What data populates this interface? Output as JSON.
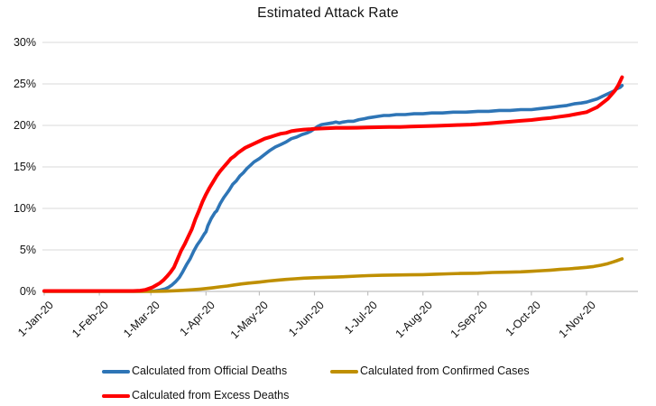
{
  "title": "Estimated Attack Rate",
  "colors": {
    "gridline": "#D9D9D9",
    "axis_line": "#C0C0C0",
    "text": "#111111",
    "background": "#FFFFFF",
    "official_deaths": "#2E75B6",
    "confirmed_cases": "#BF8F00",
    "excess_deaths": "#FF0000"
  },
  "legend": {
    "items": [
      {
        "id": "official-deaths",
        "label": "Calculated from Official Deaths",
        "color": "#2E75B6"
      },
      {
        "id": "confirmed-cases",
        "label": "Calculated from Confirmed Cases",
        "color": "#BF8F00"
      },
      {
        "id": "excess-deaths",
        "label": "Calculated from Excess Deaths",
        "color": "#FF0000"
      }
    ]
  },
  "chart_data": {
    "type": "line",
    "title": "Estimated Attack Rate",
    "xlabel": "",
    "ylabel": "",
    "grid": "horizontal",
    "legend_position": "bottom",
    "x_axis": {
      "unit": "days since 1-Jan-20",
      "tick_labels": [
        "1-Jan-20",
        "1-Feb-20",
        "1-Mar-20",
        "1-Apr-20",
        "1-May-20",
        "1-Jun-20",
        "1-Jul-20",
        "1-Aug-20",
        "1-Sep-20",
        "1-Oct-20",
        "1-Nov-20"
      ],
      "tick_days": [
        0,
        31,
        60,
        91,
        121,
        152,
        182,
        213,
        244,
        274,
        305
      ],
      "range_days": [
        0,
        334
      ]
    },
    "y_axis": {
      "tick_labels": [
        "0%",
        "5%",
        "10%",
        "15%",
        "20%",
        "25%",
        "30%"
      ],
      "tick_values": [
        0,
        5,
        10,
        15,
        20,
        25,
        30
      ],
      "range": [
        0,
        30
      ]
    },
    "series": [
      {
        "id": "official-deaths",
        "name": "Calculated from Official Deaths",
        "color": "#2E75B6",
        "width": 3.6,
        "points_day_pct": [
          [
            0,
            0.02
          ],
          [
            20,
            0.02
          ],
          [
            40,
            0.02
          ],
          [
            55,
            0.02
          ],
          [
            62,
            0.05
          ],
          [
            65,
            0.15
          ],
          [
            68,
            0.3
          ],
          [
            70,
            0.5
          ],
          [
            72,
            0.8
          ],
          [
            74,
            1.2
          ],
          [
            76,
            1.7
          ],
          [
            78,
            2.4
          ],
          [
            80,
            3.2
          ],
          [
            82,
            3.9
          ],
          [
            84,
            4.8
          ],
          [
            86,
            5.6
          ],
          [
            88,
            6.2
          ],
          [
            90,
            6.9
          ],
          [
            91,
            7.2
          ],
          [
            92,
            7.9
          ],
          [
            94,
            8.8
          ],
          [
            96,
            9.5
          ],
          [
            97,
            9.7
          ],
          [
            99,
            10.6
          ],
          [
            101,
            11.3
          ],
          [
            103,
            11.9
          ],
          [
            104,
            12.2
          ],
          [
            106,
            12.9
          ],
          [
            108,
            13.3
          ],
          [
            110,
            13.9
          ],
          [
            112,
            14.3
          ],
          [
            114,
            14.8
          ],
          [
            116,
            15.2
          ],
          [
            118,
            15.6
          ],
          [
            121,
            16.0
          ],
          [
            124,
            16.5
          ],
          [
            127,
            17.0
          ],
          [
            130,
            17.4
          ],
          [
            133,
            17.7
          ],
          [
            136,
            18.0
          ],
          [
            139,
            18.4
          ],
          [
            142,
            18.6
          ],
          [
            145,
            18.9
          ],
          [
            148,
            19.1
          ],
          [
            150,
            19.3
          ],
          [
            152,
            19.6
          ],
          [
            154,
            19.9
          ],
          [
            156,
            20.1
          ],
          [
            159,
            20.2
          ],
          [
            162,
            20.3
          ],
          [
            164,
            20.4
          ],
          [
            166,
            20.3
          ],
          [
            168,
            20.4
          ],
          [
            171,
            20.5
          ],
          [
            174,
            20.5
          ],
          [
            177,
            20.7
          ],
          [
            180,
            20.8
          ],
          [
            182,
            20.9
          ],
          [
            185,
            21.0
          ],
          [
            188,
            21.1
          ],
          [
            191,
            21.2
          ],
          [
            194,
            21.2
          ],
          [
            198,
            21.3
          ],
          [
            203,
            21.3
          ],
          [
            208,
            21.4
          ],
          [
            213,
            21.4
          ],
          [
            218,
            21.5
          ],
          [
            224,
            21.5
          ],
          [
            230,
            21.6
          ],
          [
            237,
            21.6
          ],
          [
            244,
            21.7
          ],
          [
            250,
            21.7
          ],
          [
            256,
            21.8
          ],
          [
            262,
            21.8
          ],
          [
            268,
            21.9
          ],
          [
            274,
            21.9
          ],
          [
            278,
            22.0
          ],
          [
            282,
            22.1
          ],
          [
            286,
            22.2
          ],
          [
            290,
            22.3
          ],
          [
            294,
            22.4
          ],
          [
            298,
            22.6
          ],
          [
            302,
            22.7
          ],
          [
            305,
            22.8
          ],
          [
            308,
            23.0
          ],
          [
            311,
            23.2
          ],
          [
            314,
            23.5
          ],
          [
            317,
            23.8
          ],
          [
            320,
            24.1
          ],
          [
            322,
            24.4
          ],
          [
            324,
            24.6
          ],
          [
            325,
            24.8
          ]
        ]
      },
      {
        "id": "confirmed-cases",
        "name": "Calculated from Confirmed Cases",
        "color": "#BF8F00",
        "width": 3.6,
        "points_day_pct": [
          [
            0,
            0.0
          ],
          [
            30,
            0.0
          ],
          [
            60,
            0.0
          ],
          [
            68,
            0.03
          ],
          [
            73,
            0.08
          ],
          [
            78,
            0.13
          ],
          [
            83,
            0.2
          ],
          [
            88,
            0.28
          ],
          [
            91,
            0.35
          ],
          [
            95,
            0.45
          ],
          [
            99,
            0.55
          ],
          [
            103,
            0.65
          ],
          [
            107,
            0.78
          ],
          [
            111,
            0.9
          ],
          [
            115,
            1.0
          ],
          [
            119,
            1.08
          ],
          [
            121,
            1.12
          ],
          [
            126,
            1.25
          ],
          [
            131,
            1.35
          ],
          [
            136,
            1.45
          ],
          [
            141,
            1.52
          ],
          [
            146,
            1.6
          ],
          [
            152,
            1.65
          ],
          [
            158,
            1.7
          ],
          [
            164,
            1.73
          ],
          [
            170,
            1.78
          ],
          [
            176,
            1.85
          ],
          [
            182,
            1.9
          ],
          [
            190,
            1.95
          ],
          [
            198,
            1.98
          ],
          [
            206,
            2.0
          ],
          [
            213,
            2.02
          ],
          [
            220,
            2.08
          ],
          [
            227,
            2.12
          ],
          [
            234,
            2.16
          ],
          [
            241,
            2.18
          ],
          [
            244,
            2.2
          ],
          [
            252,
            2.28
          ],
          [
            260,
            2.32
          ],
          [
            268,
            2.36
          ],
          [
            274,
            2.42
          ],
          [
            280,
            2.5
          ],
          [
            285,
            2.57
          ],
          [
            290,
            2.65
          ],
          [
            295,
            2.72
          ],
          [
            300,
            2.8
          ],
          [
            305,
            2.9
          ],
          [
            309,
            3.0
          ],
          [
            313,
            3.15
          ],
          [
            317,
            3.35
          ],
          [
            320,
            3.55
          ],
          [
            322,
            3.7
          ],
          [
            324,
            3.85
          ],
          [
            325,
            3.92
          ]
        ]
      },
      {
        "id": "excess-deaths",
        "name": "Calculated from Excess Deaths",
        "color": "#FF0000",
        "width": 4,
        "points_day_pct": [
          [
            0,
            0.05
          ],
          [
            20,
            0.05
          ],
          [
            40,
            0.05
          ],
          [
            50,
            0.05
          ],
          [
            54,
            0.1
          ],
          [
            57,
            0.2
          ],
          [
            59,
            0.35
          ],
          [
            61,
            0.5
          ],
          [
            63,
            0.75
          ],
          [
            65,
            1.0
          ],
          [
            67,
            1.35
          ],
          [
            69,
            1.8
          ],
          [
            71,
            2.3
          ],
          [
            73,
            2.9
          ],
          [
            75,
            3.9
          ],
          [
            77,
            4.9
          ],
          [
            79,
            5.7
          ],
          [
            81,
            6.6
          ],
          [
            83,
            7.5
          ],
          [
            85,
            8.7
          ],
          [
            87,
            9.7
          ],
          [
            89,
            10.8
          ],
          [
            91,
            11.7
          ],
          [
            93,
            12.5
          ],
          [
            95,
            13.2
          ],
          [
            97,
            13.9
          ],
          [
            99,
            14.5
          ],
          [
            101,
            15.0
          ],
          [
            103,
            15.5
          ],
          [
            105,
            16.0
          ],
          [
            107,
            16.3
          ],
          [
            109,
            16.7
          ],
          [
            111,
            17.0
          ],
          [
            113,
            17.3
          ],
          [
            115,
            17.5
          ],
          [
            117,
            17.7
          ],
          [
            119,
            17.9
          ],
          [
            121,
            18.1
          ],
          [
            124,
            18.4
          ],
          [
            127,
            18.6
          ],
          [
            130,
            18.8
          ],
          [
            133,
            19.0
          ],
          [
            136,
            19.1
          ],
          [
            139,
            19.3
          ],
          [
            142,
            19.4
          ],
          [
            146,
            19.5
          ],
          [
            150,
            19.55
          ],
          [
            152,
            19.6
          ],
          [
            158,
            19.65
          ],
          [
            164,
            19.7
          ],
          [
            170,
            19.7
          ],
          [
            176,
            19.72
          ],
          [
            182,
            19.75
          ],
          [
            188,
            19.78
          ],
          [
            194,
            19.8
          ],
          [
            200,
            19.82
          ],
          [
            206,
            19.86
          ],
          [
            213,
            19.9
          ],
          [
            220,
            19.95
          ],
          [
            227,
            20.0
          ],
          [
            234,
            20.05
          ],
          [
            240,
            20.1
          ],
          [
            244,
            20.15
          ],
          [
            250,
            20.25
          ],
          [
            256,
            20.35
          ],
          [
            262,
            20.45
          ],
          [
            268,
            20.55
          ],
          [
            274,
            20.65
          ],
          [
            280,
            20.8
          ],
          [
            285,
            20.9
          ],
          [
            290,
            21.05
          ],
          [
            295,
            21.2
          ],
          [
            300,
            21.4
          ],
          [
            305,
            21.6
          ],
          [
            308,
            21.9
          ],
          [
            311,
            22.2
          ],
          [
            314,
            22.7
          ],
          [
            317,
            23.2
          ],
          [
            319,
            23.7
          ],
          [
            321,
            24.2
          ],
          [
            323,
            24.9
          ],
          [
            325,
            25.8
          ]
        ]
      }
    ]
  }
}
